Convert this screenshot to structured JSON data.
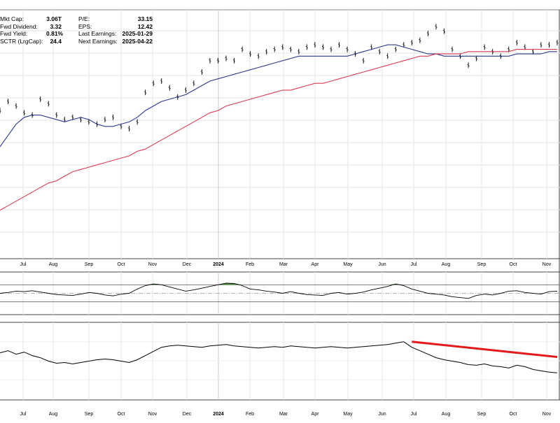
{
  "stats": {
    "left": [
      {
        "label": "Mkt Cap:",
        "value": "3.06T"
      },
      {
        "label": "Fwd Dividend:",
        "value": "3.32"
      },
      {
        "label": "Fwd Yield:",
        "value": "0.81%"
      },
      {
        "label": "SCTR (LrgCap):",
        "value": "24.4"
      }
    ],
    "right": [
      {
        "label": "P/E:",
        "value": "33.15"
      },
      {
        "label": "EPS:",
        "value": "12.42"
      },
      {
        "label": "Last Earnings:",
        "value": "2025-01-29"
      },
      {
        "label": "Next Earnings:",
        "value": "2025-04-22"
      }
    ]
  },
  "chart_data": {
    "type": "line",
    "months": [
      {
        "label": "Jul",
        "bold": false
      },
      {
        "label": "Aug",
        "bold": false
      },
      {
        "label": "Sep",
        "bold": false
      },
      {
        "label": "Oct",
        "bold": false
      },
      {
        "label": "Nov",
        "bold": false
      },
      {
        "label": "Dec",
        "bold": false
      },
      {
        "label": "2024",
        "bold": true
      },
      {
        "label": "Feb",
        "bold": false
      },
      {
        "label": "Mar",
        "bold": false
      },
      {
        "label": "Apr",
        "bold": false
      },
      {
        "label": "May",
        "bold": false
      },
      {
        "label": "Jun",
        "bold": false
      },
      {
        "label": "Jul",
        "bold": false
      },
      {
        "label": "Aug",
        "bold": false
      },
      {
        "label": "Sep",
        "bold": false
      },
      {
        "label": "Oct",
        "bold": false
      },
      {
        "label": "Nov",
        "bold": false
      }
    ],
    "price": {
      "y_range": [
        0,
        100
      ],
      "series": [
        {
          "style": "ohlc",
          "color": "#000000",
          "values": [
            58,
            62,
            60,
            57,
            56,
            63,
            61,
            56,
            54,
            55,
            54,
            53,
            52,
            54,
            55,
            51,
            50,
            53,
            66,
            70,
            71,
            68,
            64,
            67,
            70,
            75,
            80,
            80,
            81,
            80,
            85,
            83,
            82,
            84,
            85,
            86,
            85,
            84,
            86,
            87,
            86,
            85,
            87,
            85,
            83,
            80,
            86,
            84,
            82,
            85,
            87,
            88,
            89,
            92,
            95,
            93,
            85,
            82,
            78,
            81,
            86,
            84,
            82,
            85,
            88,
            86,
            84,
            87,
            87,
            88
          ]
        },
        {
          "style": "line",
          "color": "#2b3990",
          "values": [
            42,
            47,
            52,
            55,
            56,
            56,
            55,
            54,
            53,
            54,
            55,
            54,
            52,
            51,
            51,
            52,
            53,
            55,
            58,
            60,
            62,
            63,
            64,
            65,
            67,
            69,
            71,
            72,
            73,
            74,
            75,
            76,
            77,
            78,
            79,
            80,
            81,
            82,
            82,
            82,
            82,
            82,
            82,
            82,
            83,
            84,
            85,
            86,
            87,
            87,
            86,
            85,
            84,
            83,
            83,
            82,
            82,
            82,
            82,
            82,
            82,
            82,
            82,
            82,
            83,
            83,
            83,
            83,
            84,
            84
          ]
        },
        {
          "style": "line",
          "color": "#d93b4f",
          "values": [
            14,
            16,
            18,
            20,
            22,
            24,
            26,
            27,
            29,
            31,
            32,
            33,
            34,
            35,
            36,
            37,
            38,
            40,
            41,
            43,
            45,
            47,
            49,
            51,
            53,
            55,
            57,
            58,
            60,
            61,
            62,
            63,
            64,
            65,
            66,
            67,
            67,
            68,
            69,
            70,
            70,
            71,
            72,
            73,
            74,
            75,
            76,
            77,
            78,
            79,
            80,
            81,
            82,
            82,
            83,
            83,
            83,
            83,
            84,
            84,
            84,
            84,
            84,
            84,
            85,
            85,
            85,
            85,
            85,
            85
          ]
        }
      ]
    },
    "rsi": {
      "levels": [
        70,
        50,
        30
      ],
      "values": [
        50,
        52,
        55,
        54,
        56,
        53,
        50,
        47,
        46,
        45,
        48,
        52,
        50,
        46,
        44,
        48,
        50,
        60,
        68,
        72,
        70,
        65,
        60,
        55,
        58,
        62,
        66,
        70,
        74,
        73,
        68,
        60,
        58,
        55,
        53,
        50,
        54,
        50,
        47,
        46,
        45,
        50,
        52,
        48,
        50,
        53,
        58,
        62,
        66,
        72,
        68,
        60,
        55,
        50,
        48,
        46,
        42,
        40,
        38,
        45,
        48,
        46,
        50,
        55,
        56,
        52,
        50,
        48,
        54,
        55
      ]
    },
    "indicator": {
      "values": [
        62,
        65,
        60,
        63,
        58,
        55,
        50,
        47,
        48,
        46,
        48,
        50,
        52,
        53,
        52,
        50,
        48,
        52,
        58,
        64,
        70,
        72,
        73,
        72,
        71,
        70,
        72,
        73,
        74,
        72,
        71,
        70,
        69,
        70,
        71,
        70,
        72,
        71,
        70,
        69,
        70,
        71,
        70,
        69,
        70,
        71,
        72,
        73,
        74,
        76,
        78,
        70,
        65,
        60,
        55,
        52,
        50,
        48,
        45,
        44,
        46,
        43,
        42,
        40,
        44,
        42,
        38,
        36,
        34,
        33
      ],
      "trendline": {
        "color": "#e41a1a",
        "from_index": 51,
        "from_value": 78,
        "to_index": 69,
        "to_value": 56
      }
    }
  }
}
